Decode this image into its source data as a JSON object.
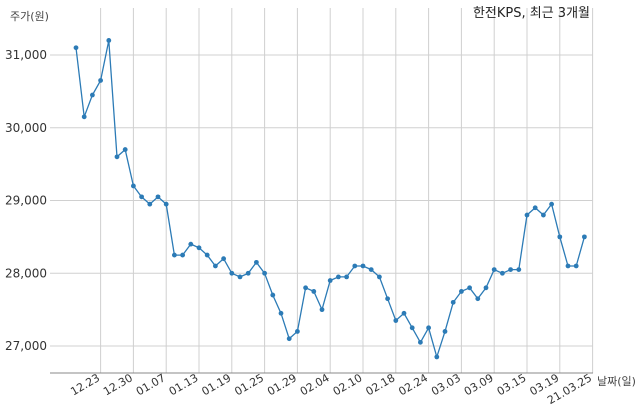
{
  "chart_data": {
    "type": "line",
    "title": "한전KPS, 최근 3개월",
    "ylabel": "주가(원)",
    "xlabel": "날짜(일)",
    "ylim": [
      26600,
      31400
    ],
    "yticks": [
      27000,
      28000,
      29000,
      30000,
      31000
    ],
    "ytick_labels": [
      "27,000",
      "28,000",
      "29,000",
      "30,000",
      "31,000"
    ],
    "xticks": [
      {
        "label": "12.23",
        "index": 3
      },
      {
        "label": "12.30",
        "index": 7
      },
      {
        "label": "01.07",
        "index": 11
      },
      {
        "label": "01.13",
        "index": 15
      },
      {
        "label": "01.19",
        "index": 19
      },
      {
        "label": "01.25",
        "index": 23
      },
      {
        "label": "01.29",
        "index": 27
      },
      {
        "label": "02.04",
        "index": 31
      },
      {
        "label": "02.10",
        "index": 35
      },
      {
        "label": "02.18",
        "index": 39
      },
      {
        "label": "02.24",
        "index": 43
      },
      {
        "label": "03.03",
        "index": 47
      },
      {
        "label": "03.09",
        "index": 51
      },
      {
        "label": "03.15",
        "index": 55
      },
      {
        "label": "03.19",
        "index": 59
      },
      {
        "label": "21.03.25",
        "index": 63
      }
    ],
    "grid": true,
    "color": "#2c7bb6",
    "series": [
      {
        "values": [
          31100,
          30150,
          30450,
          30650,
          31200,
          29600,
          29700,
          29200,
          29050,
          28950,
          29050,
          28950,
          28250,
          28250,
          28400,
          28350,
          28250,
          28100,
          28200,
          28000,
          27950,
          28000,
          28150,
          28000,
          27700,
          27450,
          27100,
          27200,
          27800,
          27750,
          27500,
          27900,
          27950,
          27950,
          28100,
          28100,
          28050,
          27950,
          27650,
          27350,
          27450,
          27250,
          27050,
          27250,
          26850,
          27200,
          27600,
          27750,
          27800,
          27650,
          27800,
          28050,
          28000,
          28050,
          28050,
          28800,
          28900,
          28800,
          28950,
          28500,
          28100,
          28100,
          28500
        ]
      }
    ]
  }
}
